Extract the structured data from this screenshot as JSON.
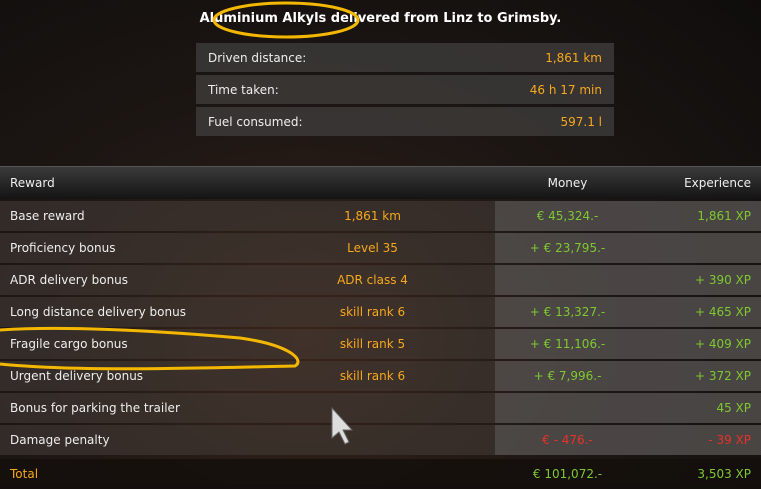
{
  "title": "Aluminium Alkyls delivered from Linz to Grimsby.",
  "stats": [
    {
      "label": "Driven distance:",
      "value": "1,861 km"
    },
    {
      "label": "Time taken:",
      "value": "46 h 17 min"
    },
    {
      "label": "Fuel consumed:",
      "value": "597.1 l"
    }
  ],
  "table": {
    "headers": {
      "reward": "Reward",
      "detail": "",
      "money": "Money",
      "experience": "Experience"
    },
    "rows": [
      {
        "reward": "Base reward",
        "detail": "1,861 km",
        "money": "€ 45,324.-",
        "xp": "1,861 XP"
      },
      {
        "reward": "Proficiency bonus",
        "detail": "Level 35",
        "money": "+ € 23,795.-",
        "xp": ""
      },
      {
        "reward": "ADR delivery bonus",
        "detail": "ADR class 4",
        "money": "",
        "xp": "+ 390 XP"
      },
      {
        "reward": "Long distance delivery bonus",
        "detail": "skill rank 6",
        "money": "+ € 13,327.-",
        "xp": "+ 465 XP"
      },
      {
        "reward": "Fragile cargo bonus",
        "detail": "skill rank 5",
        "money": "+ € 11,106.-",
        "xp": "+ 409 XP"
      },
      {
        "reward": "Urgent delivery bonus",
        "detail": "skill rank 6",
        "money": "+ € 7,996.-",
        "xp": "+ 372 XP"
      },
      {
        "reward": "Bonus for parking the trailer",
        "detail": "",
        "money": "",
        "xp": "45 XP"
      },
      {
        "reward": "Damage penalty",
        "detail": "",
        "money": "€ - 476.-",
        "xp": "- 39 XP"
      }
    ],
    "total": {
      "label": "Total",
      "money": "€ 101,072.-",
      "xp": "3,503 XP"
    }
  },
  "colors": {
    "accent": "#f7a81b",
    "positive": "#7ec832",
    "negative": "#e8312a",
    "annotation": "#f5b800"
  }
}
